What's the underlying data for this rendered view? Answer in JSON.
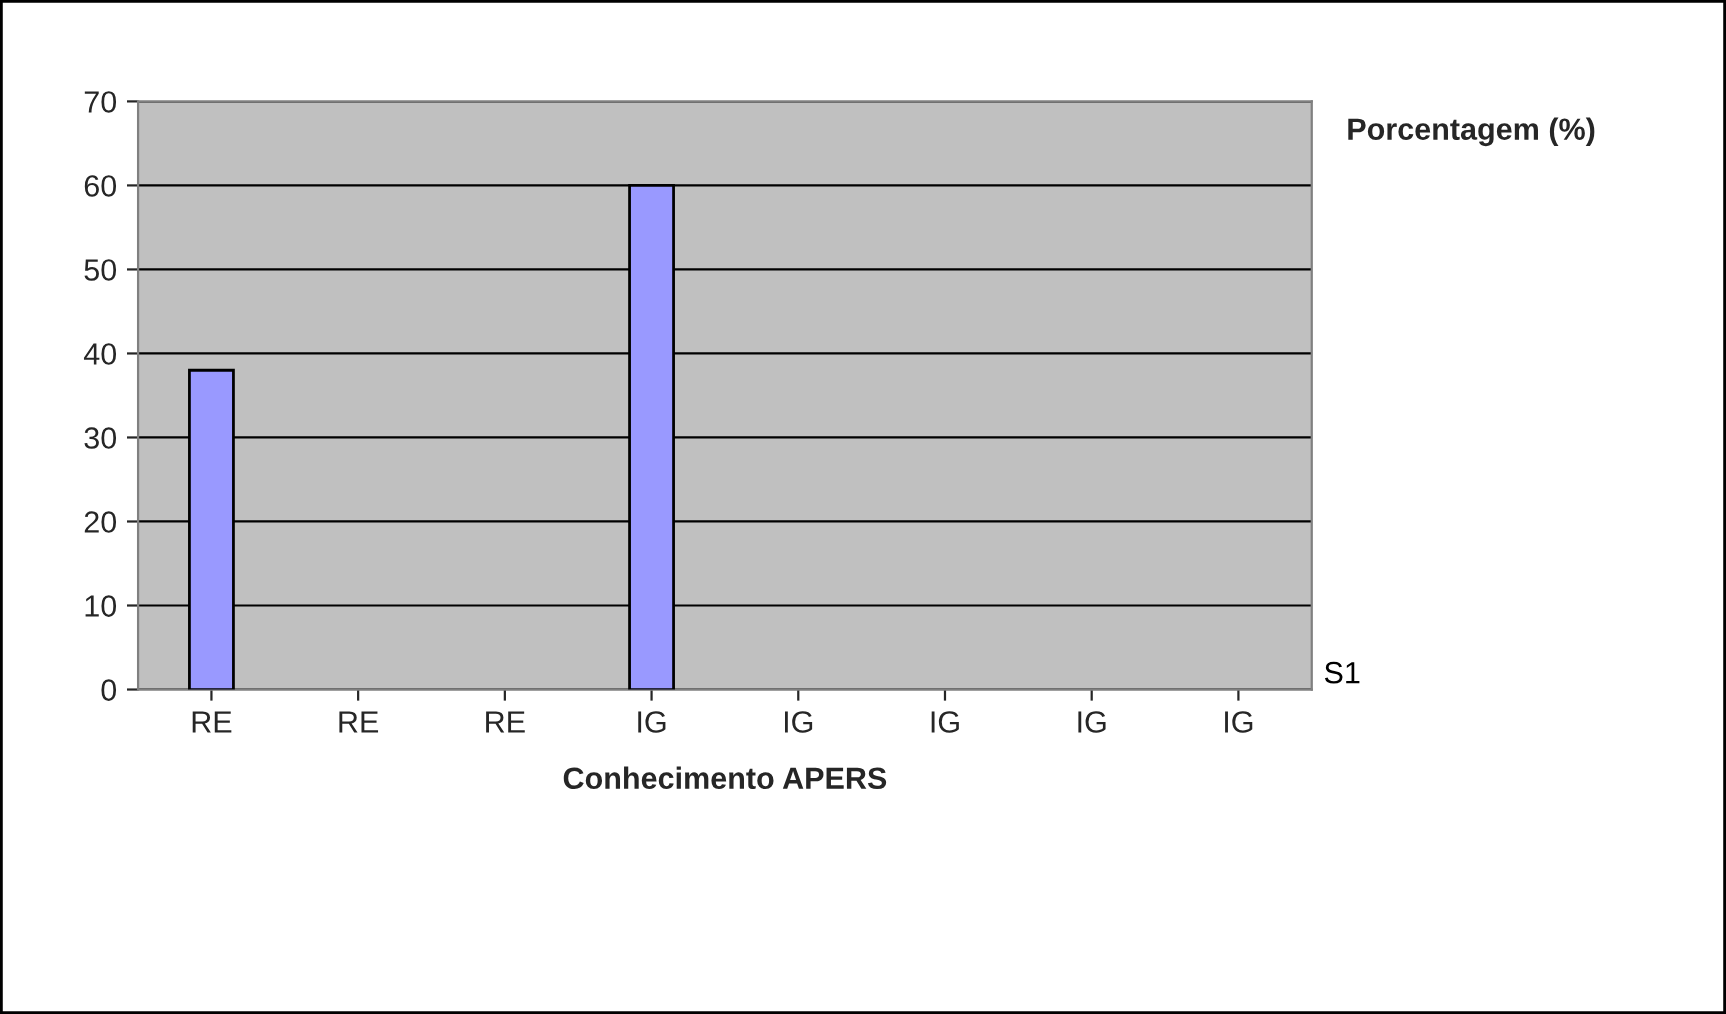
{
  "chart_data": {
    "type": "bar",
    "xlabel": "Conhecimento APERS",
    "ylabel": "Porcentagem (%)",
    "categories": [
      "RE",
      "RE",
      "RE",
      "IG",
      "IG",
      "IG",
      "IG",
      "IG"
    ],
    "series": [
      {
        "name": "S1",
        "color": "#9999ff",
        "values": [
          38,
          null,
          null,
          60,
          null,
          null,
          null,
          null
        ]
      }
    ],
    "ylim": [
      0,
      70
    ],
    "yticks": [
      0,
      10,
      20,
      30,
      40,
      50,
      60,
      70
    ],
    "grid": "y"
  }
}
